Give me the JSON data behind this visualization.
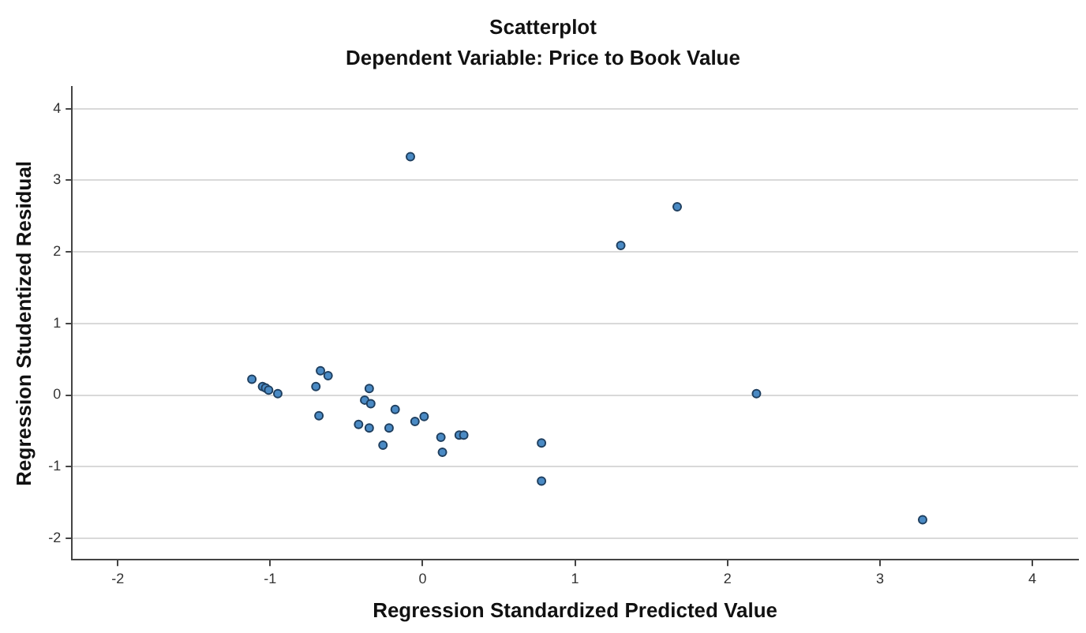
{
  "chart_data": {
    "type": "scatter",
    "title": "Scatterplot",
    "subtitle": "Dependent Variable: Price to Book Value",
    "xlabel": "Regression Standardized Predicted Value",
    "ylabel": "Regression Studentized Residual",
    "xlim": [
      -2.3,
      4.3
    ],
    "xticks": [
      -2,
      -1,
      0,
      1,
      2,
      3,
      4
    ],
    "ylim": [
      -2.3,
      4.3
    ],
    "yticks": [
      -2,
      -1,
      0,
      1,
      2,
      3,
      4
    ],
    "grid": "y",
    "legend": false,
    "marker": "circle",
    "series": [
      {
        "color": "#4a8ac4",
        "x": [
          -0.08,
          1.3,
          1.67,
          2.19,
          0.78,
          0.78,
          3.28,
          -1.12,
          -1.05,
          -1.03,
          -1.01,
          -0.95,
          -0.7,
          -0.67,
          -0.62,
          -0.68,
          -0.35,
          -0.38,
          -0.34,
          -0.42,
          -0.35,
          -0.26,
          -0.22,
          -0.18,
          -0.05,
          0.01,
          0.12,
          0.13,
          0.24,
          0.27
        ],
        "values": [
          3.33,
          2.09,
          2.63,
          0.02,
          -0.67,
          -1.2,
          -1.74,
          0.22,
          0.12,
          0.1,
          0.07,
          0.02,
          0.12,
          0.34,
          0.27,
          -0.29,
          0.09,
          -0.07,
          -0.12,
          -0.41,
          -0.46,
          -0.7,
          -0.46,
          -0.2,
          -0.37,
          -0.3,
          -0.59,
          -0.8,
          -0.56,
          -0.56
        ]
      }
    ]
  }
}
